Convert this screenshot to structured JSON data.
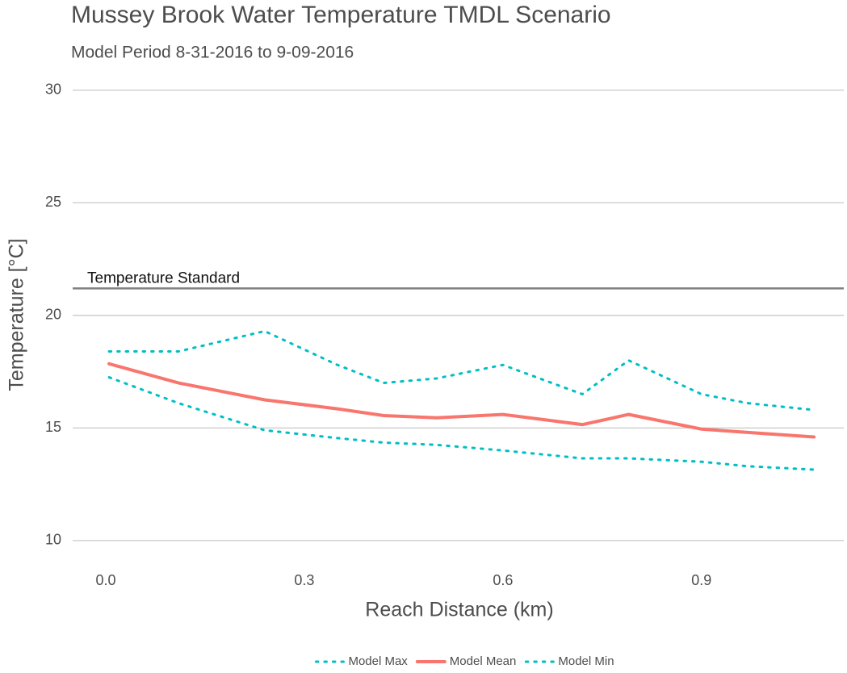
{
  "chart_data": {
    "type": "line",
    "title": "Mussey Brook Water Temperature TMDL Scenario",
    "subtitle": "Model Period 8-31-2016 to 9-09-2016",
    "x_label": "Reach Distance (km)",
    "y_label": "Temperature [°C]",
    "x": [
      0.005,
      0.11,
      0.24,
      0.35,
      0.42,
      0.5,
      0.6,
      0.72,
      0.79,
      0.9,
      0.97,
      1.07
    ],
    "series": [
      {
        "name": "Model Max",
        "color": "#00BFC4",
        "linestyle": "dotted",
        "values": [
          18.4,
          18.4,
          19.3,
          17.8,
          17.0,
          17.2,
          17.8,
          16.5,
          18.0,
          16.5,
          16.1,
          15.8
        ]
      },
      {
        "name": "Model Mean",
        "color": "#F8766D",
        "linestyle": "solid",
        "values": [
          17.85,
          17.0,
          16.25,
          15.85,
          15.55,
          15.45,
          15.6,
          15.15,
          15.6,
          14.95,
          14.8,
          14.6
        ]
      },
      {
        "name": "Model Min",
        "color": "#00BFC4",
        "linestyle": "dotted",
        "values": [
          17.25,
          16.1,
          14.9,
          14.55,
          14.35,
          14.25,
          14.0,
          13.65,
          13.65,
          13.5,
          13.3,
          13.15
        ]
      }
    ],
    "hlines": [
      {
        "value": 21.2,
        "label": "Temperature Standard",
        "color": "#808080"
      }
    ],
    "xlim": [
      -0.05,
      1.115
    ],
    "ylim": [
      9.1,
      30.6
    ],
    "xticks": [
      {
        "value": 0,
        "label": "0.0"
      },
      0.3,
      0.6,
      0.9
    ],
    "yticks": [
      10,
      15,
      20,
      25,
      30
    ],
    "grid": true,
    "legend": "bottom"
  }
}
